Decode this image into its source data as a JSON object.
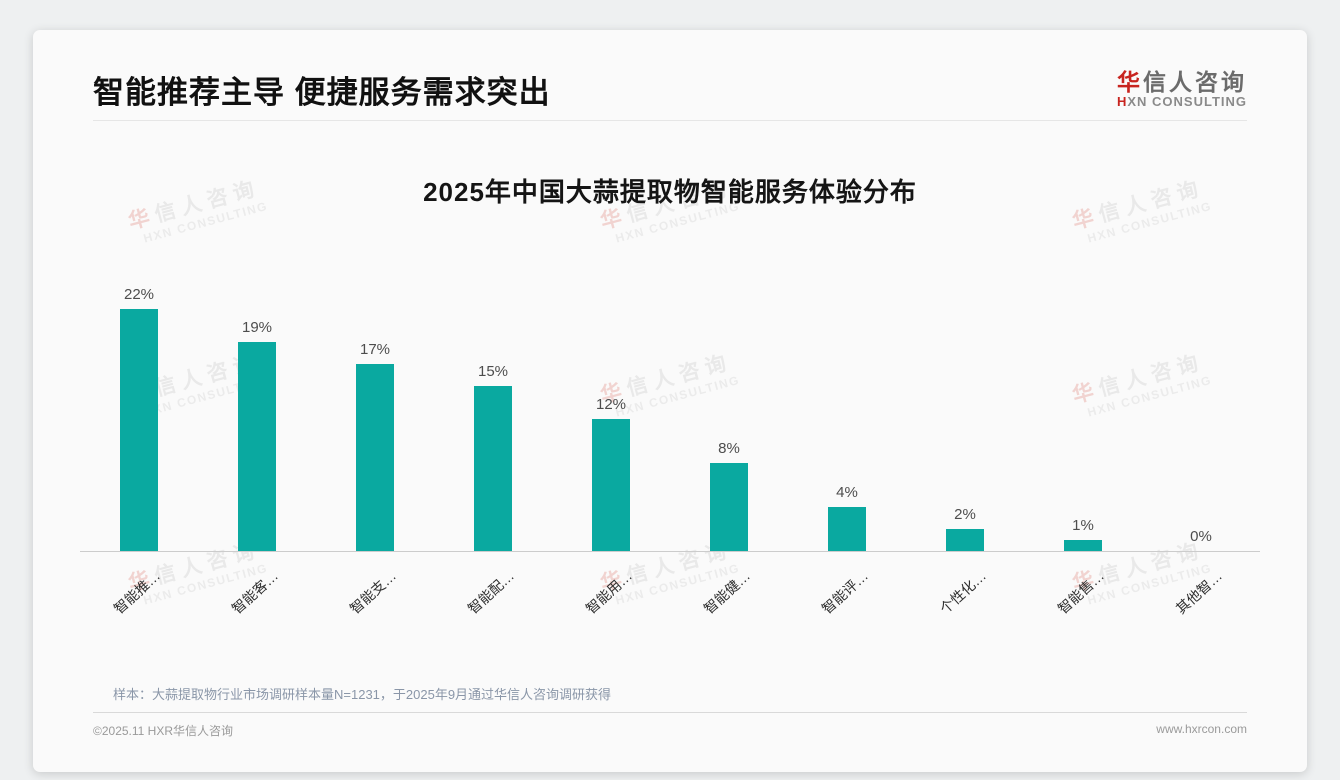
{
  "header": {
    "title": "智能推荐主导 便捷服务需求突出",
    "logo": {
      "cn_accent": "华",
      "cn_rest": "信人咨询",
      "en_accent": "H",
      "en_rest": "XN CONSULTING"
    }
  },
  "watermark": {
    "cn_accent": "华",
    "cn_rest": "信人咨询",
    "en": "HXN CONSULTING"
  },
  "chart_data": {
    "type": "bar",
    "title": "2025年中国大蒜提取物智能服务体验分布",
    "categories": [
      "智能推…",
      "智能客…",
      "智能支…",
      "智能配…",
      "智能用…",
      "智能健…",
      "智能评…",
      "个性化…",
      "智能售…",
      "其他智…"
    ],
    "values": [
      22,
      19,
      17,
      15,
      12,
      8,
      4,
      2,
      1,
      0
    ],
    "value_labels": [
      "22%",
      "19%",
      "17%",
      "15%",
      "12%",
      "8%",
      "4%",
      "2%",
      "1%",
      "0%"
    ],
    "ylabel": "",
    "xlabel": "",
    "ylim": [
      0,
      24
    ],
    "grid": false,
    "legend": false,
    "bar_color": "#0AA9A0"
  },
  "note": {
    "text": "样本：大蒜提取物行业市场调研样本量N=1231，于2025年9月通过华信人咨询调研获得"
  },
  "footer": {
    "copyright": "©2025.11 HXR华信人咨询",
    "website": "www.hxrcon.com"
  },
  "colors": {
    "bar": "#0AA9A0",
    "accent_red": "#C8241F"
  }
}
